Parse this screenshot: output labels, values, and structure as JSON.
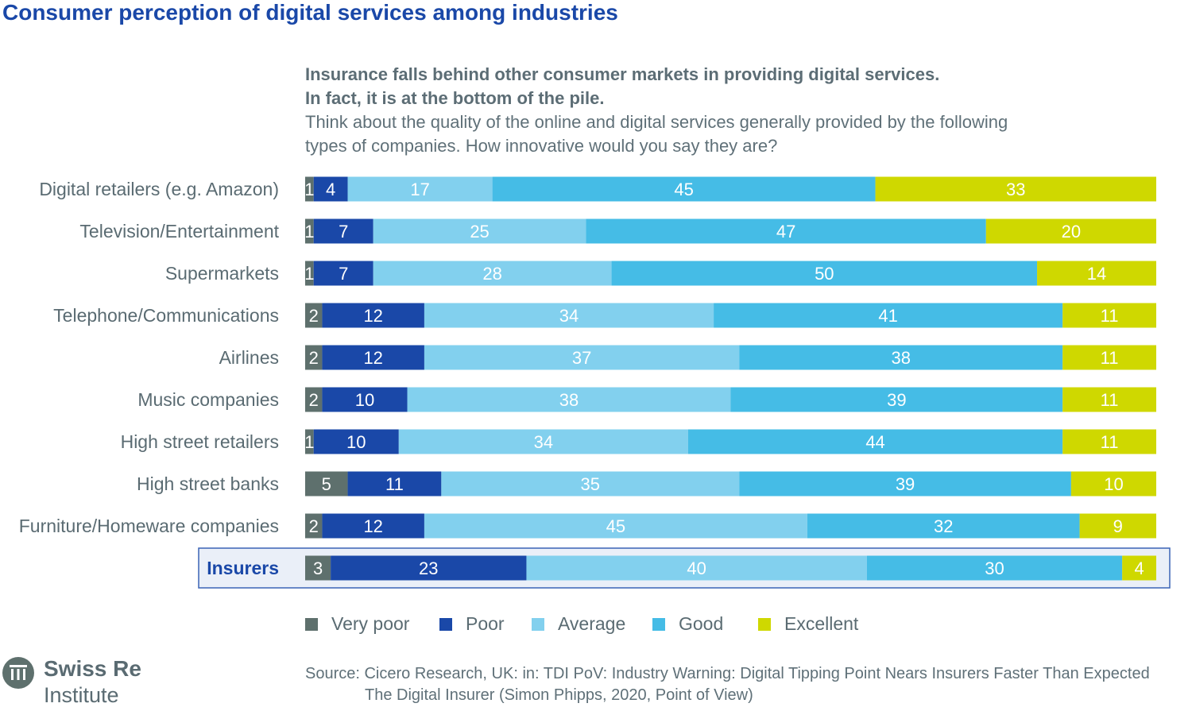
{
  "title": "Consumer perception of digital services among industries",
  "subtitle_bold_1": "Insurance falls behind other consumer markets in providing digital services.",
  "subtitle_bold_2": "In fact, it is at the bottom of the pile.",
  "subtitle_normal_1": "Think about the quality of the online and digital services generally provided by the following",
  "subtitle_normal_2": "types of companies. How innovative would you say they are?",
  "source_line1": "Source: Cicero Research, UK: in: TDI PoV: Industry Warning: Digital Tipping Point Nears Insurers Faster Than Expected",
  "source_line2": "The Digital Insurer (Simon Phipps, 2020, Point of View)",
  "logo": {
    "name": "Swiss Re",
    "sub": "Institute"
  },
  "chart_data": {
    "type": "bar",
    "orientation": "horizontal",
    "stacked": true,
    "categories": [
      "Digital retailers (e.g. Amazon)",
      "Television/Entertainment",
      "Supermarkets",
      "Telephone/Communications",
      "Airlines",
      "Music companies",
      "High street retailers",
      "High street banks",
      "Furniture/Homeware companies",
      "Insurers"
    ],
    "highlighted_category": "Insurers",
    "series": [
      {
        "name": "Very poor",
        "color": "#5e706d",
        "values": [
          1,
          1,
          1,
          2,
          2,
          2,
          1,
          5,
          2,
          3
        ]
      },
      {
        "name": "Poor",
        "color": "#1a48a8",
        "values": [
          4,
          7,
          7,
          12,
          12,
          10,
          10,
          11,
          12,
          23
        ]
      },
      {
        "name": "Average",
        "color": "#82d0ee",
        "values": [
          17,
          25,
          28,
          34,
          37,
          38,
          34,
          35,
          45,
          40
        ]
      },
      {
        "name": "Good",
        "color": "#45bce6",
        "values": [
          45,
          47,
          50,
          41,
          38,
          39,
          44,
          39,
          32,
          30
        ]
      },
      {
        "name": "Excellent",
        "color": "#cfd800",
        "values": [
          33,
          20,
          14,
          11,
          11,
          11,
          11,
          10,
          9,
          4
        ]
      }
    ],
    "legend": "bottom"
  }
}
